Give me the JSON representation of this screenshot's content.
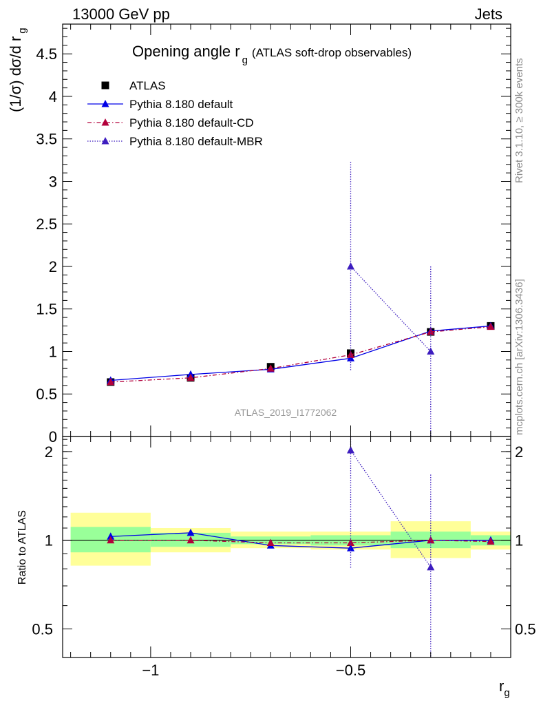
{
  "header": {
    "left": "13000 GeV pp",
    "right": "Jets"
  },
  "side_text": {
    "rivet": "Rivet 3.1.10, ≥ 300k events",
    "mcplots": "mcplots.cern.ch [arXiv:1306.3436]"
  },
  "chart_data": [
    {
      "type": "scatter",
      "panel": "main",
      "title": "Opening angle r_g (ATLAS soft-drop observables)",
      "title_main": "Opening angle r",
      "title_sub": "g",
      "title_rest": "(ATLAS soft-drop observables)",
      "ylabel": "(1/σ) dσ/d r_g",
      "ylabel_main": "(1/σ) dσ/d r",
      "ylabel_sub": "g",
      "watermark": "ATLAS_2019_I1772062",
      "xlim": [
        -1.22,
        -0.1
      ],
      "ylim": [
        0,
        4.85
      ],
      "yticks": [
        0,
        0.5,
        1,
        1.5,
        2,
        2.5,
        3,
        3.5,
        4,
        4.5
      ],
      "yticklabels": [
        "0",
        "0.5",
        "1",
        "1.5",
        "2",
        "2.5",
        "3",
        "3.5",
        "4",
        "4.5"
      ],
      "legend_position": "top-left",
      "series": [
        {
          "name": "ATLAS",
          "style": "data",
          "color": "#000000",
          "x": [
            -1.1,
            -0.9,
            -0.7,
            -0.5,
            -0.3,
            -0.15
          ],
          "y": [
            0.64,
            0.69,
            0.82,
            0.98,
            1.23,
            1.3
          ]
        },
        {
          "name": "Pythia 8.180 default",
          "style": "solid",
          "color": "#0000e6",
          "x": [
            -1.1,
            -0.9,
            -0.7,
            -0.5,
            -0.3,
            -0.15
          ],
          "y": [
            0.66,
            0.73,
            0.79,
            0.92,
            1.24,
            1.3
          ],
          "err": [
            0.01,
            0.01,
            0.01,
            0.01,
            0.01,
            0.01
          ]
        },
        {
          "name": "Pythia 8.180 default-CD",
          "style": "dashdot",
          "color": "#b3003b",
          "x": [
            -1.1,
            -0.9,
            -0.7,
            -0.5,
            -0.3,
            -0.15
          ],
          "y": [
            0.64,
            0.69,
            0.8,
            0.96,
            1.23,
            1.29
          ],
          "err": [
            0.01,
            0.01,
            0.01,
            0.01,
            0.01,
            0.01
          ]
        },
        {
          "name": "Pythia 8.180 default-MBR",
          "style": "dotted",
          "color": "#3d1dbf",
          "x": [
            -0.5,
            -0.3
          ],
          "y": [
            2.0,
            1.0
          ],
          "err": [
            1.23,
            1.0
          ]
        }
      ]
    },
    {
      "type": "scatter",
      "panel": "ratio",
      "ylabel": "Ratio to ATLAS",
      "xlabel": "r_g",
      "xlabel_main": "r",
      "xlabel_sub": "g",
      "xlim": [
        -1.22,
        -0.1
      ],
      "ylim": [
        0.4,
        2.25
      ],
      "log_y": true,
      "yticklabels_at": [
        0.5,
        1,
        2
      ],
      "yticklabels": [
        "0.5",
        "1",
        "2"
      ],
      "xticklabels_at": [
        -1,
        -0.5
      ],
      "xticklabels": [
        "−1",
        "−0.5"
      ],
      "bands": {
        "bins": [
          [
            -1.2,
            -1.0
          ],
          [
            -1.0,
            -0.8
          ],
          [
            -0.8,
            -0.6
          ],
          [
            -0.6,
            -0.4
          ],
          [
            -0.4,
            -0.2
          ],
          [
            -0.2,
            -0.1
          ]
        ],
        "inner_color": "#99ff99",
        "outer_color": "#ffff99",
        "inner": [
          [
            0.91,
            1.11
          ],
          [
            0.95,
            1.06
          ],
          [
            0.97,
            1.03
          ],
          [
            0.96,
            1.04
          ],
          [
            0.94,
            1.07
          ],
          [
            0.96,
            1.04
          ]
        ],
        "outer": [
          [
            0.82,
            1.24
          ],
          [
            0.91,
            1.1
          ],
          [
            0.94,
            1.07
          ],
          [
            0.93,
            1.07
          ],
          [
            0.87,
            1.16
          ],
          [
            0.93,
            1.07
          ]
        ]
      },
      "series": [
        {
          "name": "Pythia 8.180 default",
          "style": "solid",
          "color": "#0000e6",
          "x": [
            -1.1,
            -0.9,
            -0.7,
            -0.5,
            -0.3,
            -0.15
          ],
          "y": [
            1.03,
            1.06,
            0.96,
            0.94,
            1.0,
            1.0
          ],
          "err": [
            0.015,
            0.015,
            0.01,
            0.01,
            0.01,
            0.01
          ]
        },
        {
          "name": "Pythia 8.180 default-CD",
          "style": "dashdot",
          "color": "#b3003b",
          "x": [
            -1.1,
            -0.9,
            -0.7,
            -0.5,
            -0.3,
            -0.15
          ],
          "y": [
            1.0,
            1.0,
            0.98,
            0.98,
            1.0,
            0.99
          ],
          "err": [
            0.01,
            0.01,
            0.01,
            0.01,
            0.01,
            0.01
          ]
        },
        {
          "name": "Pythia 8.180 default-MBR",
          "style": "dotted",
          "color": "#3d1dbf",
          "x": [
            -0.5,
            -0.3
          ],
          "y": [
            2.02,
            0.81
          ],
          "err_lo": [
            1.22,
            0.81
          ],
          "err_hi": [
            2.25,
            1.67
          ]
        }
      ]
    }
  ]
}
